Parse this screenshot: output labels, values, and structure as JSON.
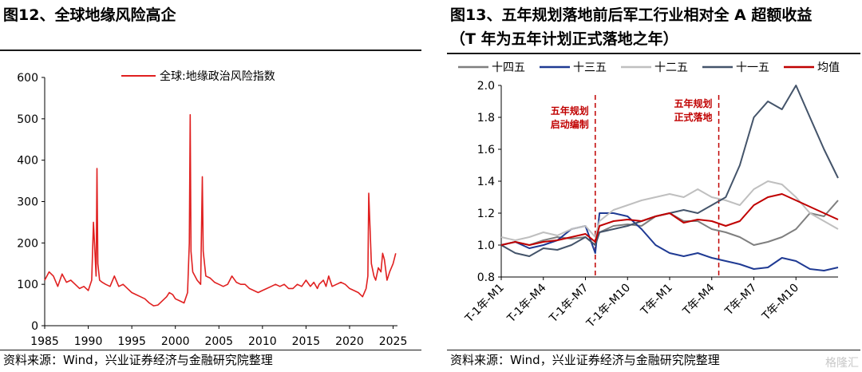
{
  "left": {
    "title": "图12、全球地缘风险高企",
    "source": "资料来源：Wind，兴业证券经济与金融研究院整理",
    "chart_data": {
      "type": "line",
      "title": "图12、全球地缘风险高企",
      "xlabel": "",
      "ylabel": "",
      "xlim": [
        1985,
        2025.5
      ],
      "ylim": [
        0,
        600
      ],
      "xticks": [
        "1985",
        "1990",
        "1995",
        "2000",
        "2005",
        "2010",
        "2015",
        "2020",
        "2025"
      ],
      "yticks": [
        "0",
        "100",
        "200",
        "300",
        "400",
        "500",
        "600"
      ],
      "legend": "top-center",
      "grid": false,
      "color": "#e02020",
      "series": [
        {
          "name": "全球:地缘政治风险指数",
          "x": [
            1985,
            1985.5,
            1986,
            1986.5,
            1987,
            1987.5,
            1988,
            1988.5,
            1989,
            1989.5,
            1990,
            1990.4,
            1990.6,
            1990.9,
            1991,
            1991.1,
            1991.3,
            1991.6,
            1992,
            1992.5,
            1993,
            1993.5,
            1994,
            1994.5,
            1995,
            1995.5,
            1996,
            1996.5,
            1997,
            1997.5,
            1998,
            1998.5,
            1999,
            1999.3,
            1999.7,
            2000,
            2000.5,
            2001,
            2001.4,
            2001.6,
            2001.7,
            2001.8,
            2002,
            2002.5,
            2002.9,
            2003.1,
            2003.2,
            2003.5,
            2004,
            2004.5,
            2005,
            2005.5,
            2006,
            2006.5,
            2007,
            2007.5,
            2008,
            2008.5,
            2009,
            2009.5,
            2010,
            2010.5,
            2011,
            2011.5,
            2012,
            2012.5,
            2013,
            2013.5,
            2014,
            2014.5,
            2015,
            2015.5,
            2015.9,
            2016.3,
            2016.5,
            2017,
            2017.3,
            2017.6,
            2018,
            2018.5,
            2019,
            2019.5,
            2020,
            2020.5,
            2021,
            2021.5,
            2021.9,
            2022.1,
            2022.2,
            2022.5,
            2022.8,
            2023,
            2023.3,
            2023.6,
            2023.8,
            2024,
            2024.3,
            2024.6,
            2025,
            2025.3
          ],
          "y": [
            110,
            130,
            120,
            95,
            125,
            105,
            110,
            100,
            90,
            95,
            85,
            110,
            250,
            120,
            380,
            150,
            110,
            105,
            100,
            95,
            120,
            95,
            100,
            90,
            80,
            75,
            70,
            65,
            55,
            48,
            50,
            60,
            70,
            80,
            75,
            65,
            60,
            55,
            80,
            200,
            510,
            180,
            130,
            110,
            100,
            360,
            180,
            120,
            115,
            105,
            100,
            95,
            100,
            120,
            105,
            100,
            100,
            90,
            85,
            80,
            85,
            90,
            95,
            100,
            95,
            100,
            90,
            90,
            100,
            95,
            110,
            95,
            105,
            90,
            100,
            110,
            95,
            120,
            95,
            100,
            105,
            100,
            90,
            85,
            80,
            70,
            90,
            120,
            320,
            150,
            120,
            110,
            140,
            130,
            175,
            160,
            110,
            130,
            150,
            175
          ]
        }
      ]
    }
  },
  "right": {
    "title": "图13、五年规划落地前后军工行业相对全 A 超额收益",
    "title_sub": "（T 年为五年计划正式落地之年）",
    "source": "资料来源：Wind，兴业证券经济与金融研究院整理",
    "watermark": "格隆汇",
    "annotations": [
      "五年规划",
      "启动编制",
      "五年规划",
      "正式落地"
    ],
    "chart_data": {
      "type": "line",
      "title": "图13、五年规划落地前后军工行业相对全 A 超额收益",
      "xlabel": "",
      "ylabel": "",
      "ylim": [
        0.8,
        2.0
      ],
      "yticks": [
        "0.8",
        "1.0",
        "1.2",
        "1.4",
        "1.6",
        "1.8",
        "2.0"
      ],
      "xticks": [
        "T-1年-M1",
        "T-1年-M4",
        "T-1年-M7",
        "T-1年-M10",
        "T年-M1",
        "T年-M4",
        "T年-M7",
        "T年-M10"
      ],
      "xlim": [
        0,
        24
      ],
      "vlines": [
        6.7,
        15.5
      ],
      "legend": "top",
      "grid": false,
      "series": [
        {
          "name": "十四五",
          "color": "#7f7f7f",
          "x": [
            0,
            1,
            2,
            3,
            4,
            5,
            6,
            6.7,
            7,
            8,
            9,
            10,
            11,
            12,
            13,
            14,
            15,
            16,
            17,
            18,
            19,
            20,
            21,
            22,
            23,
            24
          ],
          "y": [
            1.0,
            1.02,
            1.0,
            1.03,
            1.05,
            1.04,
            1.05,
            1.0,
            1.08,
            1.12,
            1.13,
            1.12,
            1.18,
            1.2,
            1.15,
            1.15,
            1.1,
            1.08,
            1.05,
            1.0,
            1.02,
            1.05,
            1.1,
            1.2,
            1.18,
            1.28
          ]
        },
        {
          "name": "十三五",
          "color": "#1f3a93",
          "x": [
            0,
            1,
            2,
            3,
            4,
            5,
            6,
            6.7,
            7,
            8,
            9,
            10,
            11,
            12,
            13,
            14,
            15,
            16,
            17,
            18,
            19,
            20,
            21,
            22,
            23,
            24
          ],
          "y": [
            1.0,
            1.02,
            0.98,
            1.0,
            1.03,
            1.1,
            1.12,
            0.95,
            1.2,
            1.2,
            1.18,
            1.1,
            1.0,
            0.95,
            0.93,
            0.95,
            0.92,
            0.9,
            0.88,
            0.85,
            0.86,
            0.92,
            0.9,
            0.85,
            0.84,
            0.86
          ]
        },
        {
          "name": "十二五",
          "color": "#bfbfbf",
          "x": [
            0,
            1,
            2,
            3,
            4,
            5,
            6,
            6.7,
            7,
            8,
            9,
            10,
            11,
            12,
            13,
            14,
            15,
            16,
            17,
            18,
            19,
            20,
            21,
            22,
            23,
            24
          ],
          "y": [
            1.05,
            1.03,
            1.05,
            1.08,
            1.06,
            1.1,
            1.12,
            1.05,
            1.15,
            1.22,
            1.25,
            1.28,
            1.3,
            1.32,
            1.3,
            1.35,
            1.3,
            1.28,
            1.25,
            1.35,
            1.4,
            1.38,
            1.3,
            1.2,
            1.15,
            1.1
          ]
        },
        {
          "name": "十一五",
          "color": "#44546a",
          "x": [
            0,
            1,
            2,
            3,
            4,
            5,
            6,
            6.7,
            7,
            8,
            9,
            10,
            11,
            12,
            13,
            14,
            15,
            16,
            17,
            18,
            19,
            20,
            21,
            22,
            23,
            24
          ],
          "y": [
            1.0,
            0.95,
            0.93,
            0.98,
            0.97,
            1.0,
            1.05,
            1.0,
            1.08,
            1.1,
            1.12,
            1.15,
            1.18,
            1.2,
            1.22,
            1.2,
            1.25,
            1.3,
            1.5,
            1.8,
            1.9,
            1.85,
            2.0,
            1.8,
            1.6,
            1.42
          ]
        },
        {
          "name": "均值",
          "color": "#c00000",
          "x": [
            0,
            1,
            2,
            3,
            4,
            5,
            6,
            6.7,
            7,
            8,
            9,
            10,
            11,
            12,
            13,
            14,
            15,
            16,
            17,
            18,
            19,
            20,
            21,
            22,
            23,
            24
          ],
          "y": [
            1.0,
            1.02,
            1.0,
            1.02,
            1.03,
            1.05,
            1.07,
            1.02,
            1.12,
            1.15,
            1.16,
            1.15,
            1.18,
            1.2,
            1.14,
            1.16,
            1.15,
            1.12,
            1.15,
            1.25,
            1.3,
            1.32,
            1.28,
            1.24,
            1.2,
            1.16
          ]
        }
      ]
    }
  }
}
